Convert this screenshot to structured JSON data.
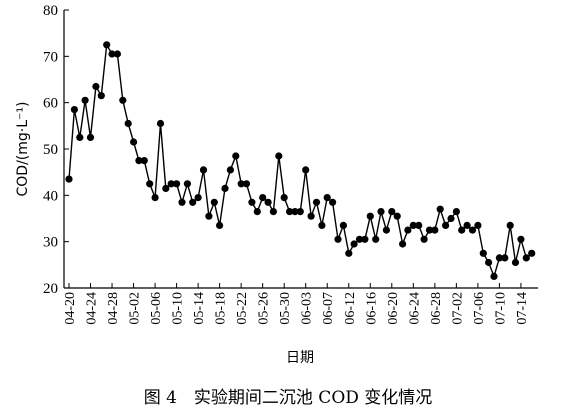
{
  "chart_data": {
    "type": "line",
    "title": "图 4　实验期间二沉池 COD 变化情况",
    "xlabel": "日期",
    "ylabel": "COD/(mg·L⁻¹)",
    "ylim": [
      20,
      80
    ],
    "yticks": [
      20,
      30,
      40,
      50,
      60,
      70,
      80
    ],
    "xtick_labels": [
      "04-20",
      "04-24",
      "04-28",
      "05-02",
      "05-06",
      "05-10",
      "05-14",
      "05-18",
      "05-22",
      "05-26",
      "05-30",
      "06-03",
      "06-07",
      "06-12",
      "06-16",
      "06-20",
      "06-24",
      "06-28",
      "07-02",
      "07-06",
      "07-10",
      "07-14"
    ],
    "grid": false,
    "legend": "none",
    "marker": "filled-circle",
    "line_color": "#000000",
    "series": [
      {
        "name": "",
        "values": [
          43.5,
          58.5,
          52.5,
          60.5,
          52.5,
          63.5,
          61.5,
          72.5,
          70.5,
          70.5,
          60.5,
          55.5,
          51.5,
          47.5,
          47.5,
          42.5,
          39.5,
          55.5,
          41.5,
          42.5,
          42.5,
          38.5,
          42.5,
          38.5,
          39.5,
          45.5,
          35.5,
          38.5,
          33.5,
          41.5,
          45.5,
          48.5,
          42.5,
          42.5,
          38.5,
          36.5,
          39.5,
          38.5,
          36.5,
          48.5,
          39.5,
          36.5,
          36.5,
          36.5,
          45.5,
          35.5,
          38.5,
          33.5,
          39.5,
          38.5,
          30.5,
          33.5,
          27.5,
          29.5,
          30.5,
          30.5,
          35.5,
          30.5,
          36.5,
          32.5,
          36.5,
          35.5,
          29.5,
          32.5,
          33.5,
          33.5,
          30.5,
          32.5,
          32.5,
          37.0,
          33.5,
          35.0,
          36.5,
          32.5,
          33.5,
          32.5,
          33.5,
          27.5,
          25.5,
          22.5,
          26.5,
          26.5,
          33.5,
          25.5,
          30.5,
          26.5,
          27.5
        ]
      }
    ]
  }
}
